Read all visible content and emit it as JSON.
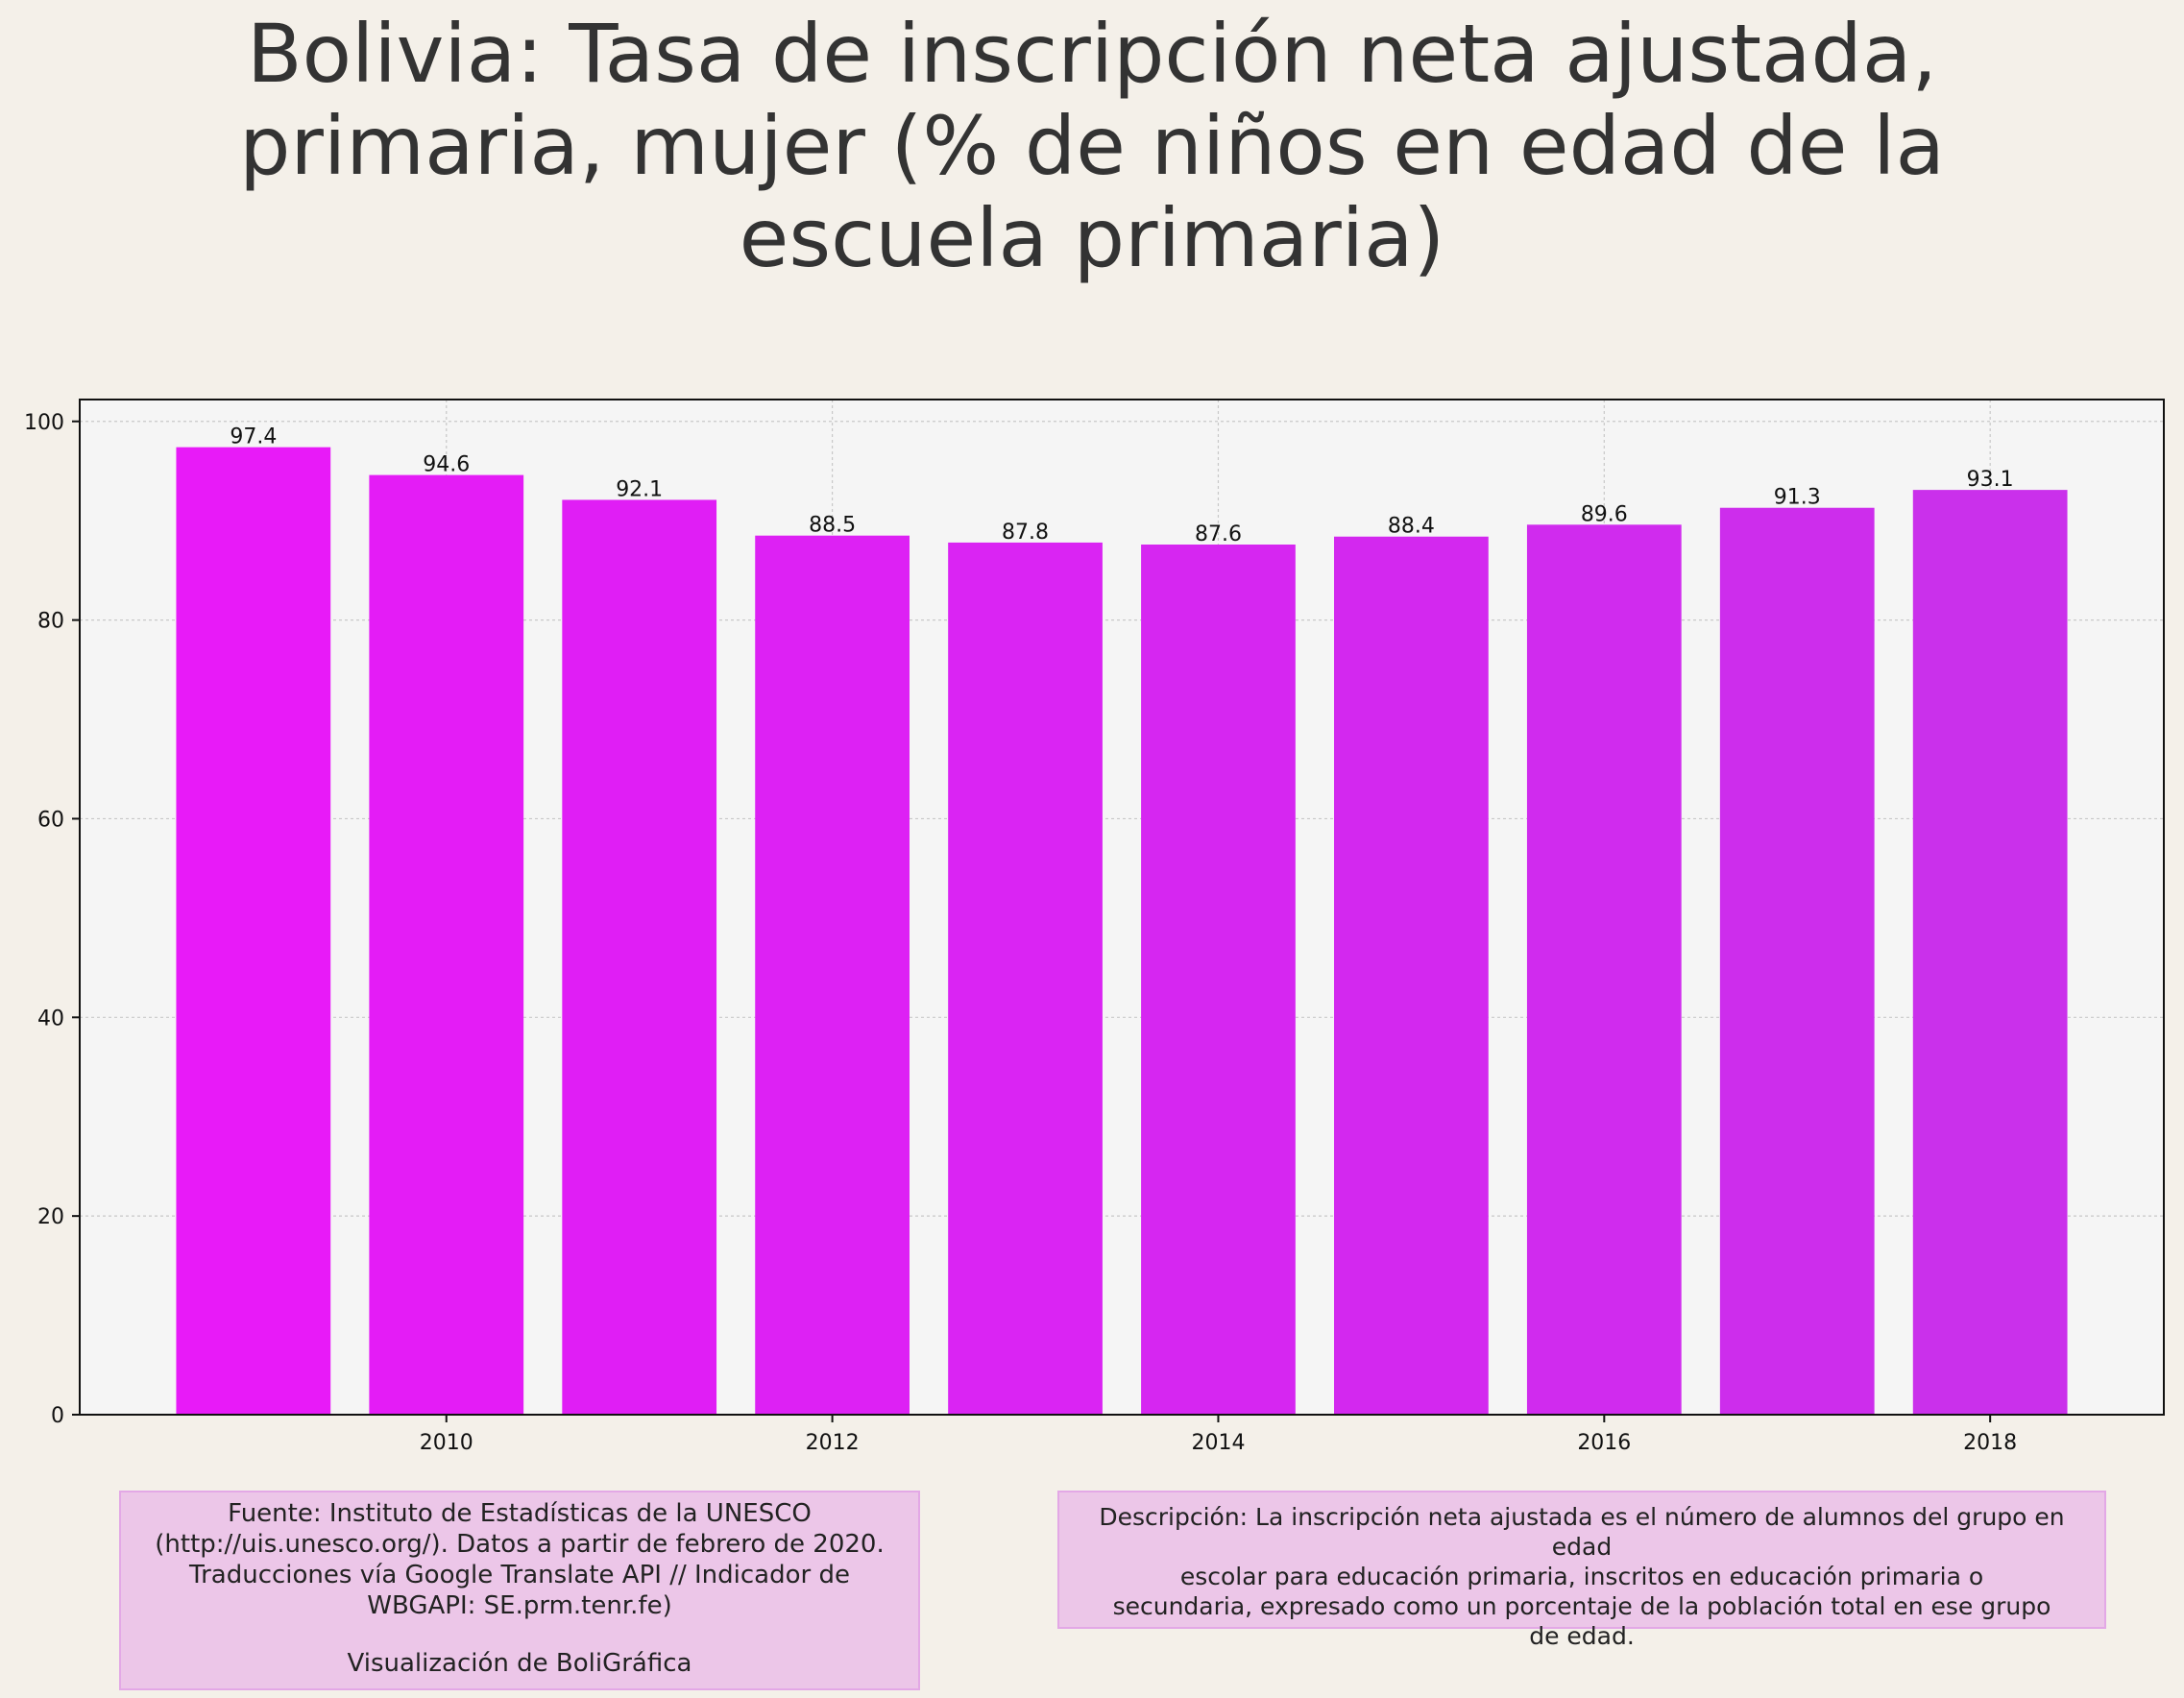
{
  "chart_data": {
    "type": "bar",
    "title": "Bolivia:  Tasa de inscripción neta ajustada, primaria, mujer (% de niños en edad de la escuela primaria)",
    "title_lines": [
      "Bolivia:  Tasa de inscripción neta ajustada,",
      "primaria, mujer (% de niños en edad de la",
      "escuela primaria)"
    ],
    "x": [
      2009,
      2010,
      2011,
      2012,
      2013,
      2014,
      2015,
      2016,
      2017,
      2018
    ],
    "values": [
      97.4,
      94.6,
      92.1,
      88.5,
      87.8,
      87.6,
      88.4,
      89.6,
      91.3,
      93.1
    ],
    "data_labels": [
      "97.4",
      "94.6",
      "92.1",
      "88.5",
      "87.8",
      "87.6",
      "88.4",
      "89.6",
      "91.3",
      "93.1"
    ],
    "x_ticks": [
      "2010",
      "2012",
      "2014",
      "2016",
      "2018"
    ],
    "y_ticks": [
      "0",
      "20",
      "40",
      "60",
      "80",
      "100"
    ],
    "xlim": [
      2008.1,
      2018.9
    ],
    "ylim": [
      0,
      102.2
    ],
    "xlabel": "",
    "ylabel": "",
    "grid": true,
    "bar_colors": [
      "#e81af8",
      "#e41cf6",
      "#e01ef5",
      "#dd21f4",
      "#da24f3",
      "#d626f1",
      "#d328ef",
      "#d02bee",
      "#cd2dec",
      "#ca30eb"
    ],
    "plot_background": "#f5f5f5",
    "page_background": "#f4f0e9"
  },
  "notes": {
    "source_lines": [
      "Fuente: Instituto de Estadísticas de la UNESCO",
      "(http://uis.unesco.org/). Datos a partir de febrero de 2020.",
      "Traducciones vía Google Translate API // Indicador de",
      "WBGAPI: SE.prm.tenr.fe)"
    ],
    "credit": "Visualización de BoliGráfica",
    "description_lines": [
      "Descripción: La inscripción neta ajustada es el número de alumnos del grupo en edad",
      "escolar para educación primaria, inscritos en educación primaria o",
      "secundaria, expresado como un porcentaje de la población total en ese grupo",
      "de edad."
    ]
  }
}
